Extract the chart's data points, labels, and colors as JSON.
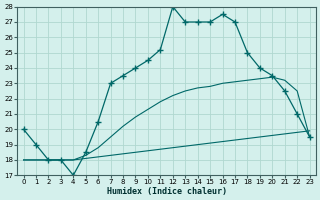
{
  "xlabel": "Humidex (Indice chaleur)",
  "bg_color": "#d4f0ec",
  "grid_color": "#b0d8d0",
  "line_color": "#006868",
  "xlim": [
    -0.5,
    23.5
  ],
  "ylim": [
    17,
    28
  ],
  "xticks": [
    0,
    1,
    2,
    3,
    4,
    5,
    6,
    7,
    8,
    9,
    10,
    11,
    12,
    13,
    14,
    15,
    16,
    17,
    18,
    19,
    20,
    21,
    22,
    23
  ],
  "yticks": [
    17,
    18,
    19,
    20,
    21,
    22,
    23,
    24,
    25,
    26,
    27,
    28
  ],
  "line1_x": [
    0,
    1,
    2,
    3,
    4,
    5,
    6,
    7,
    8,
    9,
    10,
    11,
    12,
    13,
    14,
    15,
    16,
    17,
    18,
    19,
    20,
    21,
    22,
    23
  ],
  "line1_y": [
    20,
    19,
    18,
    18,
    17,
    18.5,
    20.5,
    23,
    23.5,
    24,
    24.5,
    25.2,
    28,
    27,
    27,
    27,
    27.5,
    27,
    25,
    24,
    23.5,
    22.5,
    21,
    19.5
  ],
  "line2_x": [
    0,
    1,
    2,
    3,
    4,
    5,
    6,
    7,
    8,
    9,
    10,
    11,
    12,
    13,
    14,
    15,
    16,
    17,
    18,
    19,
    20,
    21,
    22,
    23
  ],
  "line2_y": [
    18,
    18,
    18,
    18,
    18,
    18.1,
    18.2,
    18.3,
    18.4,
    18.5,
    18.6,
    18.7,
    18.8,
    18.9,
    19.0,
    19.1,
    19.2,
    19.3,
    19.4,
    19.5,
    19.6,
    19.7,
    19.8,
    19.9
  ],
  "line3_x": [
    0,
    1,
    2,
    3,
    4,
    5,
    6,
    7,
    8,
    9,
    10,
    11,
    12,
    13,
    14,
    15,
    16,
    17,
    18,
    19,
    20,
    21,
    22,
    23
  ],
  "line3_y": [
    18,
    18,
    18,
    18,
    18,
    18.3,
    18.8,
    19.5,
    20.2,
    20.8,
    21.3,
    21.8,
    22.2,
    22.5,
    22.7,
    22.8,
    23.0,
    23.1,
    23.2,
    23.3,
    23.4,
    23.2,
    22.5,
    19.5
  ]
}
